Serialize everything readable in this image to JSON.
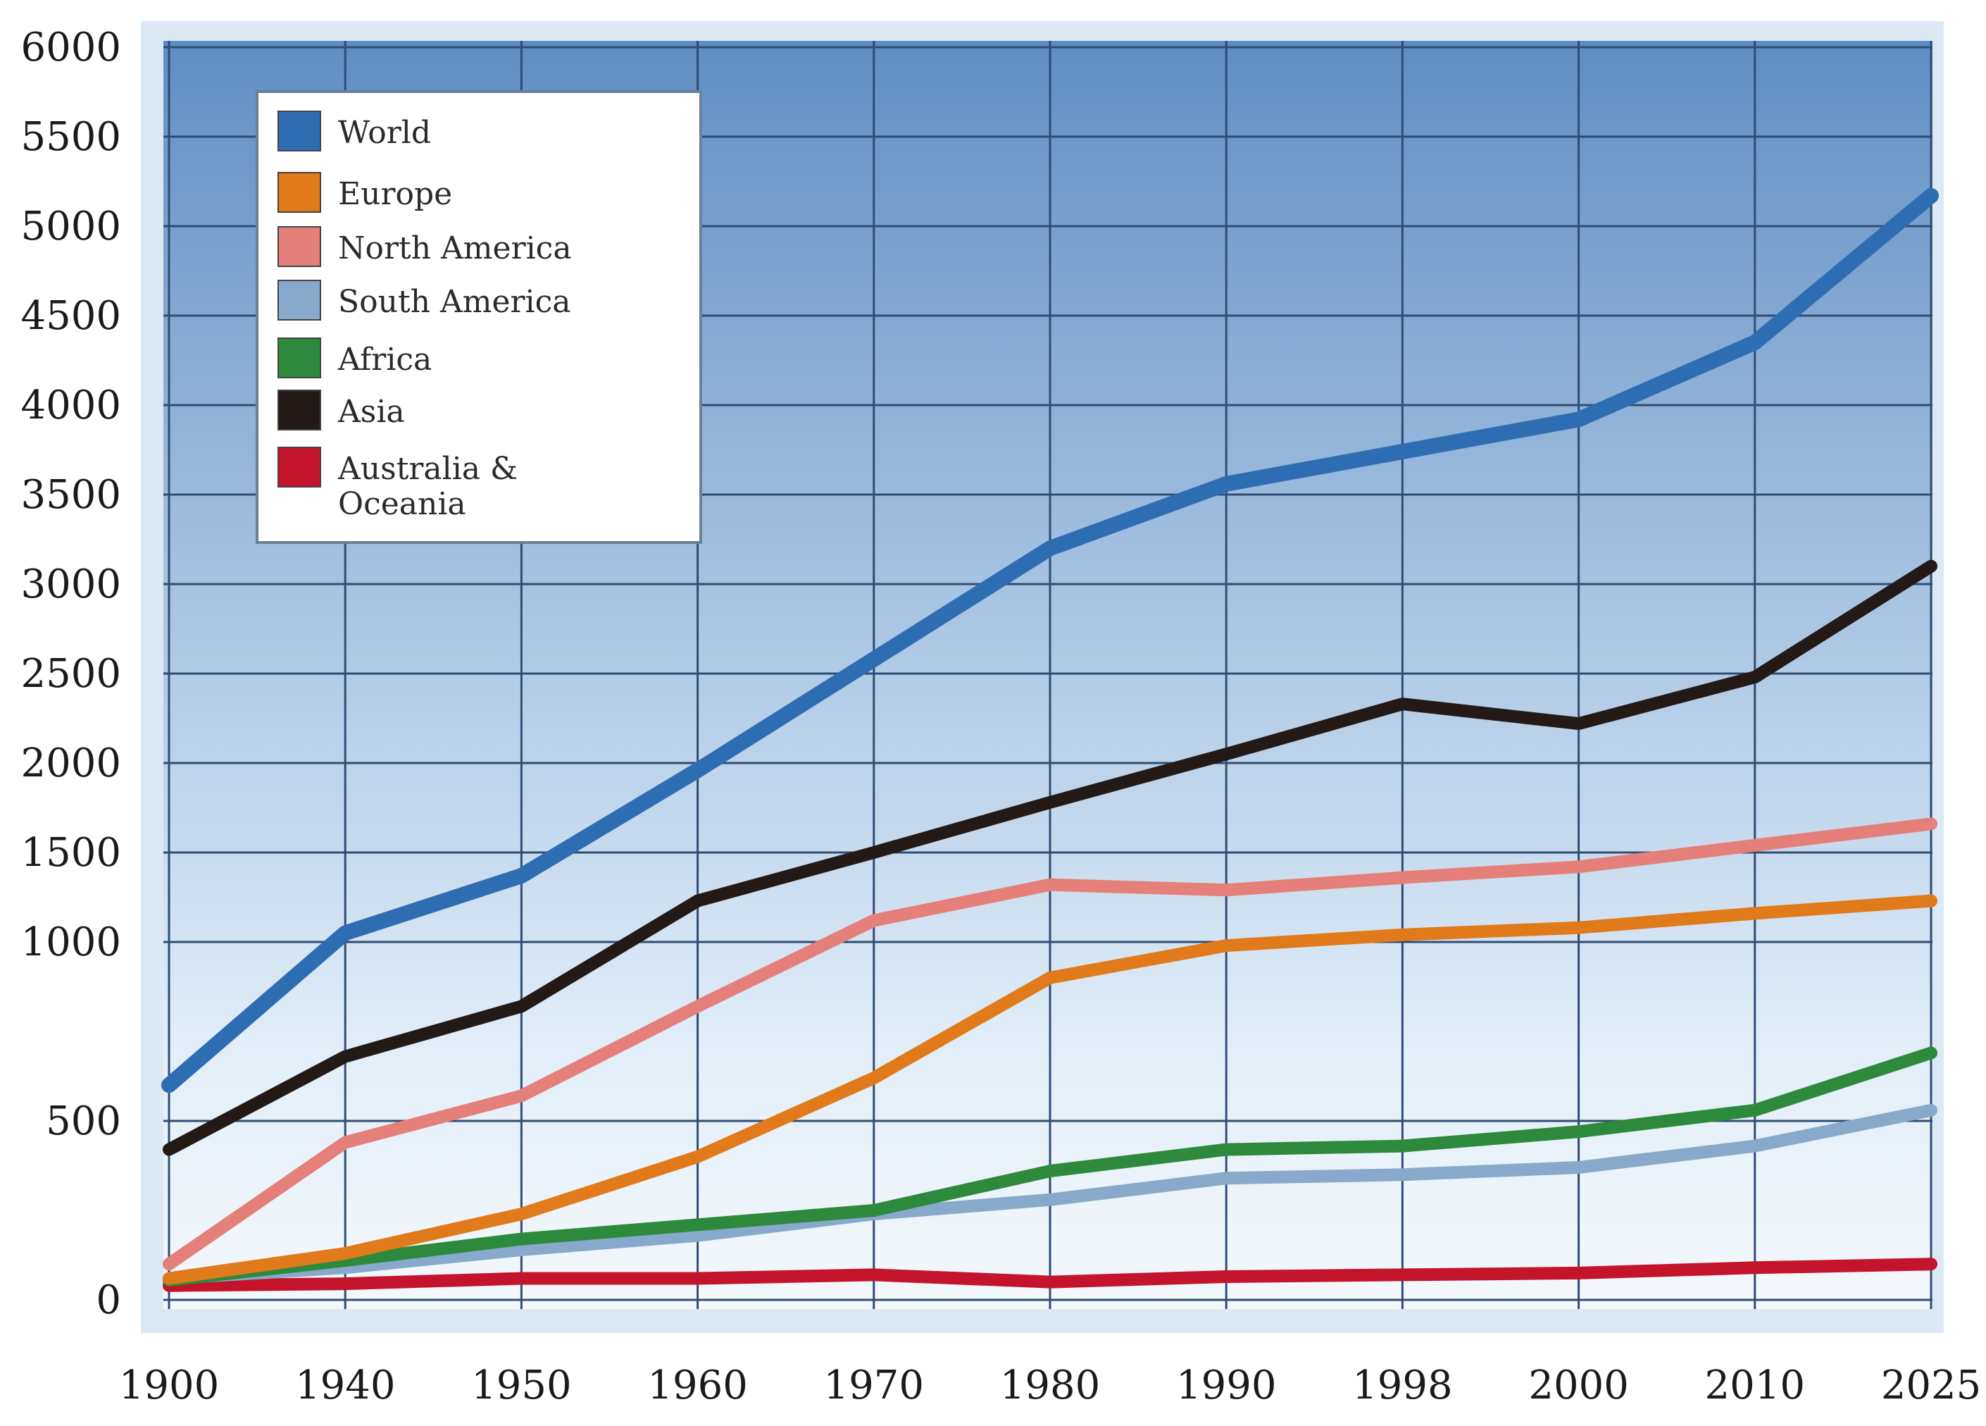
{
  "chart_data": {
    "type": "line",
    "title": "",
    "xlabel": "",
    "ylabel": "",
    "categories": [
      "1900",
      "1940",
      "1950",
      "1960",
      "1970",
      "1980",
      "1990",
      "1998",
      "2000",
      "2010",
      "2025"
    ],
    "yticks": [
      "0",
      "500",
      "1000",
      "1500",
      "2000",
      "2500",
      "3000",
      "3500",
      "4000",
      "4500",
      "5000",
      "5500",
      "6000"
    ],
    "grid": true,
    "legend_position": "top-left",
    "series": [
      {
        "name": "World",
        "color": "#2f6db2",
        "values": [
          600,
          1050,
          1370,
          1960,
          2580,
          3200,
          3560,
          3740,
          3920,
          4350,
          5170
        ]
      },
      {
        "name": "Europe",
        "color": "#e07a1a",
        "values": [
          60,
          130,
          240,
          400,
          620,
          900,
          990,
          1040,
          1080,
          1160,
          1230
        ]
      },
      {
        "name": "North America",
        "color": "#e57f79",
        "values": [
          100,
          440,
          570,
          820,
          1120,
          1320,
          1290,
          1360,
          1420,
          1540,
          1660
        ]
      },
      {
        "name": "South America",
        "color": "#86a9cc",
        "values": [
          60,
          90,
          140,
          180,
          240,
          280,
          340,
          350,
          370,
          430,
          530
        ]
      },
      {
        "name": "Africa",
        "color": "#2d8a3c",
        "values": [
          55,
          110,
          170,
          210,
          250,
          360,
          420,
          430,
          470,
          530,
          690
        ]
      },
      {
        "name": "Asia",
        "color": "#231a17",
        "values": [
          420,
          680,
          820,
          1230,
          1500,
          1780,
          2050,
          2330,
          2220,
          2480,
          3100
        ]
      },
      {
        "name": "Australia & Oceania",
        "color": "#c3142b",
        "values": [
          40,
          45,
          60,
          60,
          70,
          50,
          65,
          70,
          75,
          90,
          100
        ]
      }
    ]
  }
}
